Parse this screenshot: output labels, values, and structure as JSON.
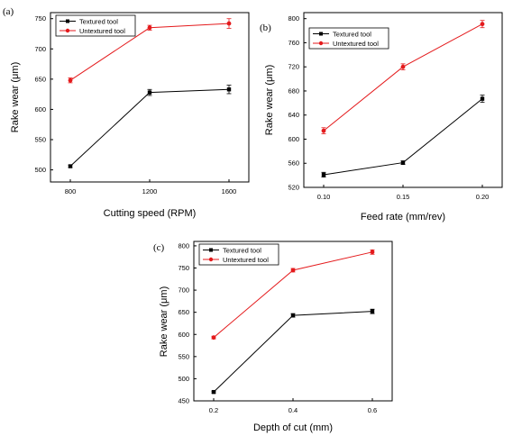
{
  "colors": {
    "textured": "#000000",
    "untextured": "#e41a1c"
  },
  "chart_data": [
    {
      "panel_label": "(a)",
      "type": "line",
      "xlabel": "Cutting speed (RPM)",
      "ylabel": "Rake wear (μm)",
      "x": [
        800,
        1200,
        1600
      ],
      "x_ticks": [
        "800",
        "1200",
        "1600"
      ],
      "ylim": [
        480,
        760
      ],
      "y_ticks": [
        500,
        550,
        600,
        650,
        700,
        750
      ],
      "legend_position": "top-left",
      "series": [
        {
          "name": "Textured tool",
          "marker": "square",
          "values": [
            506,
            628,
            633
          ],
          "errors": [
            2,
            5,
            7
          ]
        },
        {
          "name": "Untextured tool",
          "marker": "circle",
          "values": [
            648,
            735,
            742
          ],
          "errors": [
            4,
            4,
            8
          ]
        }
      ]
    },
    {
      "panel_label": "(b)",
      "type": "line",
      "xlabel": "Feed rate (mm/rev)",
      "ylabel": "Rake wear (μm)",
      "x": [
        0.1,
        0.15,
        0.2
      ],
      "x_ticks": [
        "0.10",
        "0.15",
        "0.20"
      ],
      "ylim": [
        520,
        810
      ],
      "y_ticks": [
        520,
        560,
        600,
        640,
        680,
        720,
        760,
        800
      ],
      "legend_position": "top-left",
      "series": [
        {
          "name": "Textured tool",
          "marker": "square",
          "values": [
            541,
            561,
            667
          ],
          "errors": [
            4,
            3,
            6
          ]
        },
        {
          "name": "Untextured tool",
          "marker": "circle",
          "values": [
            614,
            720,
            791
          ],
          "errors": [
            5,
            5,
            6
          ]
        }
      ]
    },
    {
      "panel_label": "(c)",
      "type": "line",
      "xlabel": "Depth of cut (mm)",
      "ylabel": "Rake wear (μm)",
      "x": [
        0.2,
        0.4,
        0.6
      ],
      "x_ticks": [
        "0.2",
        "0.4",
        "0.6"
      ],
      "ylim": [
        450,
        810
      ],
      "y_ticks": [
        450,
        500,
        550,
        600,
        650,
        700,
        750,
        800
      ],
      "legend_position": "top-left",
      "series": [
        {
          "name": "Textured tool",
          "marker": "square",
          "values": [
            470,
            643,
            652
          ],
          "errors": [
            2,
            4,
            5
          ]
        },
        {
          "name": "Untextured tool",
          "marker": "circle",
          "values": [
            593,
            745,
            786
          ],
          "errors": [
            3,
            4,
            5
          ]
        }
      ]
    }
  ]
}
